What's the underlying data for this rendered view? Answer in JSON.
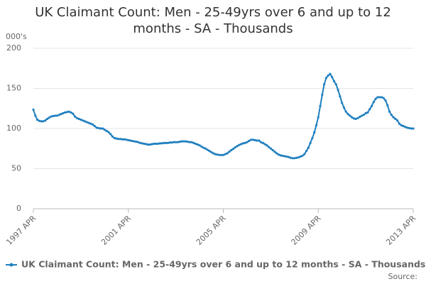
{
  "chart_data": {
    "type": "line",
    "title": "UK Claimant Count: Men - 25-49yrs over 6 and up to 12 months - SA - Thousands",
    "y_label": "000's",
    "source": "Source:",
    "categories": [
      "1997 APR",
      null,
      null,
      null,
      null,
      null,
      null,
      null,
      null,
      null,
      null,
      null,
      null,
      null,
      null,
      null,
      null,
      null,
      null,
      null,
      null,
      null,
      null,
      null,
      null,
      null,
      null,
      null,
      null,
      null,
      null,
      null,
      null,
      null,
      null,
      null,
      null,
      null,
      null,
      null,
      null,
      null,
      null,
      null,
      null,
      null,
      null,
      null,
      "2001 APR",
      null,
      null,
      null,
      null,
      null,
      null,
      null,
      null,
      null,
      null,
      null,
      null,
      null,
      null,
      null,
      null,
      null,
      null,
      null,
      null,
      null,
      null,
      null,
      null,
      null,
      null,
      null,
      null,
      null,
      null,
      null,
      null,
      null,
      null,
      null,
      null,
      null,
      null,
      null,
      null,
      null,
      null,
      null,
      null,
      null,
      null,
      null,
      "2005 APR",
      null,
      null,
      null,
      null,
      null,
      null,
      null,
      null,
      null,
      null,
      null,
      null,
      null,
      null,
      null,
      null,
      null,
      null,
      null,
      null,
      null,
      null,
      null,
      null,
      null,
      null,
      null,
      null,
      null,
      null,
      null,
      null,
      null,
      null,
      null,
      null,
      null,
      null,
      null,
      null,
      null,
      null,
      null,
      null,
      null,
      null,
      null,
      "2009 APR",
      null,
      null,
      null,
      null,
      null,
      null,
      null,
      null,
      null,
      null,
      null,
      null,
      null,
      null,
      null,
      null,
      null,
      null,
      null,
      null,
      null,
      null,
      null,
      null,
      null,
      null,
      null,
      null,
      null,
      null,
      null,
      null,
      null,
      null,
      null,
      null,
      null,
      null,
      null,
      null,
      null,
      null,
      null,
      null,
      null,
      null,
      null,
      "2013 APR"
    ],
    "series": [
      {
        "name": "UK Claimant Count: Men - 25-49yrs over 6 and up to 12 months - SA - Thousands",
        "color": "#1f7fbf",
        "values": [
          123.5,
          116,
          111,
          109.5,
          109,
          109,
          110,
          112,
          113.5,
          115,
          115.5,
          116,
          116,
          117,
          118,
          119,
          120,
          120.5,
          121,
          120,
          118.5,
          115,
          113,
          112,
          111,
          110,
          109,
          108,
          107,
          106,
          105,
          103,
          101,
          100.5,
          100,
          100,
          98.5,
          97,
          95.5,
          93,
          90,
          88,
          87.5,
          87,
          87,
          86.5,
          86.5,
          86,
          85.5,
          85,
          84.5,
          84,
          83.5,
          83,
          82,
          81.5,
          81,
          80.5,
          80,
          80,
          80.5,
          81,
          81,
          81,
          81.5,
          81.5,
          82,
          82,
          82,
          82.5,
          82.5,
          83,
          83,
          83,
          83.5,
          84,
          84,
          84,
          83.5,
          83,
          83,
          82,
          81,
          80,
          79,
          77.5,
          76,
          75,
          73.5,
          72,
          70.5,
          69,
          68,
          67.5,
          67,
          67,
          67,
          68,
          69,
          71,
          73,
          74.5,
          76.5,
          78,
          79.5,
          80.5,
          81.5,
          82,
          83,
          84.5,
          86,
          86,
          85.5,
          85,
          85,
          83,
          82,
          80.5,
          79,
          77,
          75,
          73,
          71,
          69,
          67.5,
          66.5,
          66,
          65.5,
          65,
          64.5,
          63.5,
          63,
          63,
          63.5,
          64,
          65,
          66,
          68,
          72,
          76,
          82,
          88,
          95,
          104,
          114,
          128,
          142,
          155,
          163,
          166,
          168,
          164,
          159,
          155,
          148,
          140,
          132,
          126,
          121,
          118,
          116,
          114,
          112.5,
          112,
          113,
          114.5,
          116,
          117,
          119,
          120,
          124,
          128,
          133,
          137,
          139,
          139,
          139,
          138,
          135,
          129,
          121,
          117,
          114,
          112,
          110,
          106,
          104,
          103,
          102,
          101,
          100.5,
          100,
          100
        ]
      }
    ],
    "ylim": [
      0,
      200
    ],
    "yticks": [
      0,
      50,
      100,
      150,
      200
    ],
    "grid": true,
    "legend": "bottom"
  }
}
